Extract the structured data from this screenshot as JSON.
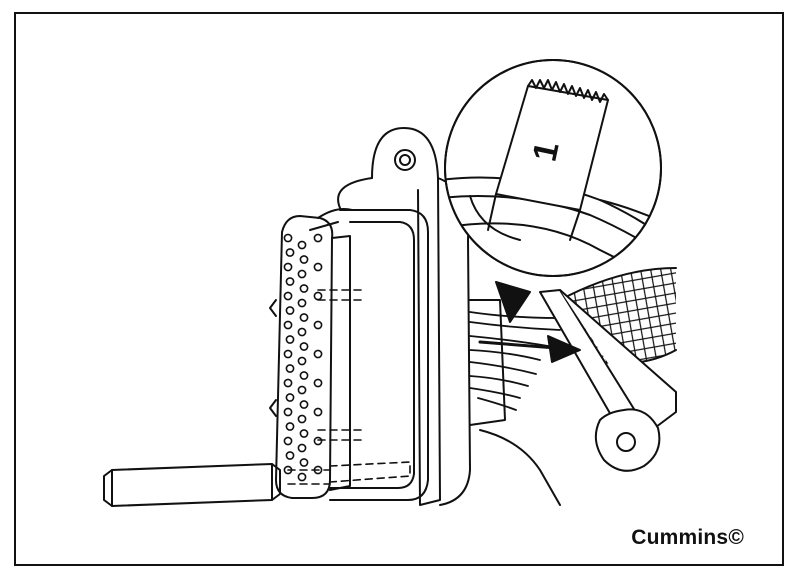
{
  "figure": {
    "credit": "Cummins©",
    "inset_tag_number": "1"
  },
  "colors": {
    "ink": "#111111",
    "paper": "#ffffff"
  }
}
